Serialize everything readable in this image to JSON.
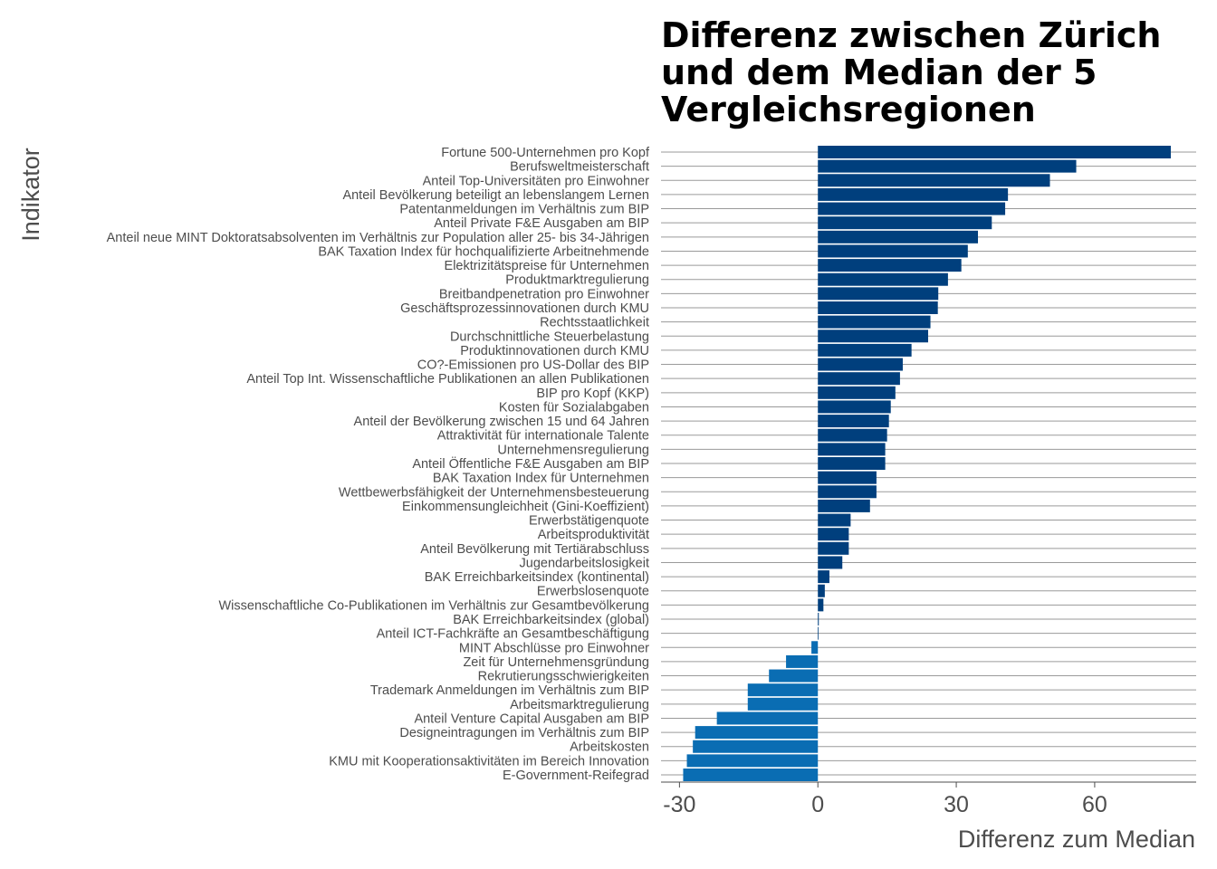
{
  "chart_data": {
    "type": "bar",
    "orientation": "horizontal",
    "title_lines": [
      "Differenz zwischen Zürich",
      "und dem Median der 5",
      "Vergleichsregionen"
    ],
    "xlabel": "Differenz zum Median",
    "ylabel": "Indikator",
    "xlim": [
      -34,
      82
    ],
    "x_ticks": [
      "-30",
      "0",
      "30",
      "60"
    ],
    "x_tick_values": [
      -30,
      0,
      30,
      60
    ],
    "grid": "horizontal lines per category",
    "colors": {
      "positive": "#003f7d",
      "negative": "#0a6db3",
      "grid": "#9a9a9a",
      "text": "#4d4d4d"
    },
    "categories": [
      "Fortune 500-Unternehmen pro Kopf",
      "Berufsweltmeisterschaft",
      "Anteil Top-Universitäten pro Einwohner",
      "Anteil Bevölkerung beteiligt an lebenslangem Lernen",
      "Patentanmeldungen im Verhältnis zum BIP",
      "Anteil Private F&E Ausgaben am BIP",
      "Anteil neue MINT Doktoratsabsolventen im Verhältnis zur Population aller 25- bis 34-Jährigen",
      "BAK Taxation Index für hochqualifizierte Arbeitnehmende",
      "Elektrizitätspreise für Unternehmen",
      "Produktmarktregulierung",
      "Breitbandpenetration pro Einwohner",
      "Geschäftsprozessinnovationen durch KMU",
      "Rechtsstaatlichkeit",
      "Durchschnittliche Steuerbelastung",
      "Produktinnovationen durch KMU",
      "CO?-Emissionen pro US-Dollar des BIP",
      "Anteil Top Int. Wissenschaftliche Publikationen an allen Publikationen",
      "BIP pro Kopf (KKP)",
      "Kosten für Sozialabgaben",
      "Anteil der Bevölkerung zwischen 15 und 64 Jahren",
      "Attraktivität für internationale Talente",
      "Unternehmensregulierung",
      "Anteil Öffentliche F&E Ausgaben am BIP",
      "BAK Taxation Index für Unternehmen",
      "Wettbewerbsfähigkeit der Unternehmensbesteuerung",
      "Einkommensungleichheit (Gini-Koeffizient)",
      "Erwerbstätigenquote",
      "Arbeitsproduktivität",
      "Anteil Bevölkerung mit Tertiärabschluss",
      "Jugendarbeitslosigkeit",
      "BAK Erreichbarkeitsindex (kontinental)",
      "Erwerbslosenquote",
      "Wissenschaftliche Co-Publikationen im Verhältnis zur Gesamtbevölkerung",
      "BAK Erreichbarkeitsindex (global)",
      "Anteil ICT-Fachkräfte an Gesamtbeschäftigung",
      "MINT Abschlüsse pro Einwohner",
      "Zeit für Unternehmensgründung",
      "Rekrutierungsschwierigkeiten",
      "Trademark Anmeldungen im Verhältnis zum BIP",
      "Arbeitsmarktregulierung",
      "Anteil Venture Capital Ausgaben am BIP",
      "Designeintragungen im Verhältnis zum BIP",
      "Arbeitskosten",
      "KMU mit Kooperationsaktivitäten im Bereich Innovation",
      "E-Government-Reifegrad"
    ],
    "values": [
      76.5,
      56,
      50.3,
      41.2,
      40.6,
      37.7,
      34.7,
      32.5,
      31.1,
      28.2,
      26.1,
      26.0,
      24.4,
      23.9,
      20.3,
      18.4,
      17.8,
      16.8,
      15.8,
      15.4,
      15.0,
      14.6,
      14.6,
      12.7,
      12.7,
      11.3,
      7.1,
      6.7,
      6.7,
      5.3,
      2.5,
      1.5,
      1.2,
      0.2,
      0.0,
      -1.4,
      -6.9,
      -10.6,
      -15.2,
      -15.2,
      -21.9,
      -26.6,
      -27.1,
      -28.4,
      -29.2
    ]
  }
}
